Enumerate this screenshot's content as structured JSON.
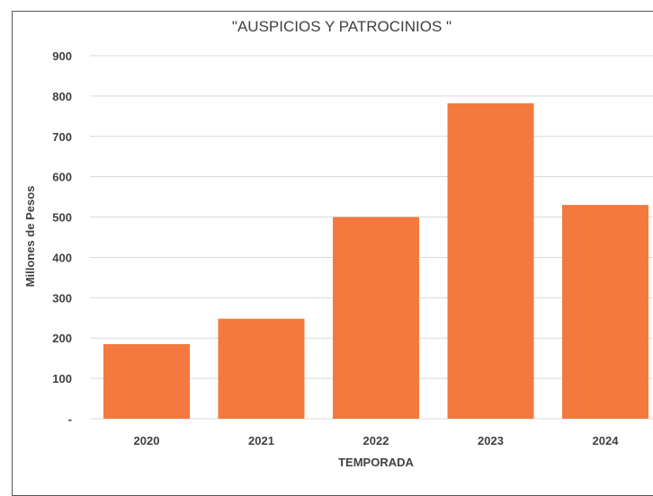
{
  "chart_data": {
    "type": "bar",
    "title": "\"AUSPICIOS Y PATROCINIOS \"",
    "xlabel": "TEMPORADA",
    "ylabel": "Millones de Pesos",
    "categories": [
      "2020",
      "2021",
      "2022",
      "2023",
      "2024"
    ],
    "values": [
      185,
      248,
      500,
      782,
      530
    ],
    "ylim": [
      0,
      900
    ],
    "yticks": [
      0,
      100,
      200,
      300,
      400,
      500,
      600,
      700,
      800,
      900
    ],
    "ytick_labels": [
      "-",
      "100",
      "200",
      "300",
      "400",
      "500",
      "600",
      "700",
      "800",
      "900"
    ],
    "grid": true,
    "legend": "none",
    "bar_color": "#F4793E"
  }
}
